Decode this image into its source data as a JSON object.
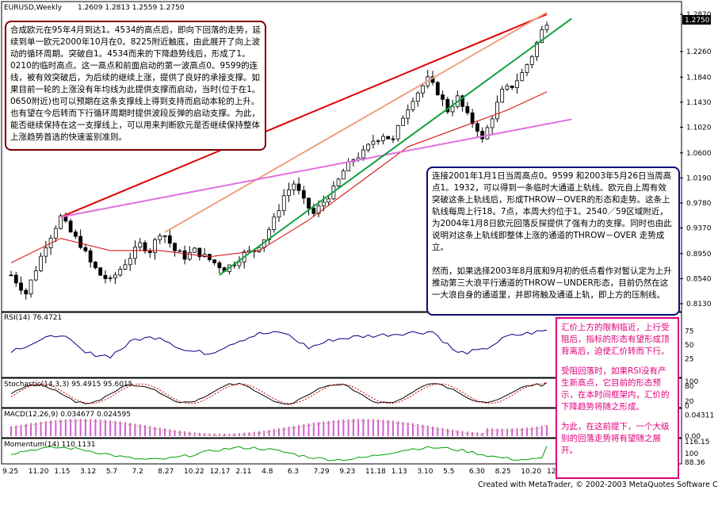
{
  "header": {
    "symbol": "EURUSD,Weekly",
    "ohlc": "1.2609 1.2813 1.2559 1.2750"
  },
  "price_axis": {
    "current": "1.2750",
    "ticks": [
      "1.2870",
      "1.2260",
      "1.1840",
      "1.1430",
      "1.1020",
      "1.0600",
      "1.0190",
      "0.9780",
      "0.9370",
      "0.8950",
      "0.8540",
      "0.8130"
    ]
  },
  "indicators": {
    "rsi": {
      "label": "RSI(14) 76.4721",
      "ticks": [
        "75",
        "50",
        "25"
      ]
    },
    "stochastic": {
      "label": "Stochastic(14,3,3) 95.4915 95.6015",
      "ticks": [
        "100",
        "80",
        "20",
        "0"
      ]
    },
    "macd": {
      "label": "MACD(12,26,9) 0.034677 0.024595",
      "ticks": [
        "0.04311",
        "0.00"
      ]
    },
    "momentum": {
      "label": "Momentum(14) 110.1131",
      "ticks": [
        "116.15",
        "100",
        "88.36"
      ]
    }
  },
  "time_axis": [
    "9.25",
    "11.20",
    "1.15",
    "3.12",
    "5.7",
    "7.2",
    "8.27",
    "10.22",
    "12.17",
    "2.11",
    "4.8",
    "6.3",
    "7.29",
    "9.23",
    "11.18",
    "1.13",
    "3.10",
    "5.5",
    "6.30",
    "8.25",
    "10.20",
    "12.15"
  ],
  "footer": "Created with MetaTrader, © 2002-2003 MetaQuotes Software Corp.",
  "notes": {
    "red": "合成欧元在95年4月到达1。4534的高点后，即向下回落的走势，延续到单一欧元2000年10月在0。8225附近触底，由此展开了向上波动的循环周期。突破自1。4534而来的下降趋势线后，形成了1。0210的临时高点。这一高点和前面启动的第一波高点0。9599的连线，被有效突破后，为后续的继续上涨，提供了良好的承接支撑。如果目前一轮的上涨没有年均线为此提供支撑而启动，当时(位于在1。0650附近)也可以预期在这条支撑线上得到支持而启动本轮的上升。 也有望在今后转而下行循环周期时提供波段反弹的启动支撑。为此，能否继续保持在这一支撑线上，可以用来判断欧元是否继续保持整体上涨趋势首选的快速鉴别准则。",
    "blue_1": "连接2001年1月1日当周高点0。9599 和2003年5月26日当周高点1。1932，可以得到一条临时大通道上轨线。欧元自上周有效突破这条上轨线后，形成THROW－OVER的形态和走势。这条上轨线每周上行18。7点，本周大约位于1。2540／59区域附近，为2004年1月8日欧元回落反探提供了强有力的支撑。同时也由此说明对这条上轨线即整体上涨的通道的THROW－OVER 走势成立。",
    "blue_2": "然而，如果选择2003年8月底和9月初的低点看作对暂认定为上升推动第三大浪平行通道的THROW－UNDER形态，目前仍然在这一大浪自身的通道里，并即将触及通道上轨，即上方的压制线。",
    "pink_1": "汇价上方的限制临近，上行受阻后，指标的形态有望形成顶背离后，迫使汇价转而下行。",
    "pink_2": "受阻回落时，如果RSI没有产生新高点，它目前的形态预示，在本时间框架内，汇价的下降趋势将随之形成。",
    "pink_3": "为此，在这前提下，一个大级别的回落走势将有望随之展开。"
  },
  "colors": {
    "candle": "#000000",
    "resistance_line": "#e00000",
    "upper_channel_line": "#f0a080",
    "support_line": "#e070e0",
    "channel_line": "#10a040",
    "moving_average": "#d00000",
    "rsi_line": "#000080",
    "stoch_main": "#000000",
    "stoch_signal": "#d00000",
    "macd_hist": "#d060d0",
    "macd_signal": "#c0a060",
    "momentum_line": "#00a000",
    "price_box": "#000000"
  },
  "chart_data": {
    "type": "candlestick",
    "title": "EURUSD,Weekly",
    "timeframe": "Weekly",
    "x_tick_labels": [
      "9.25",
      "11.20",
      "1.15",
      "3.12",
      "5.7",
      "7.2",
      "8.27",
      "10.22",
      "12.17",
      "2.11",
      "4.8",
      "6.3",
      "7.29",
      "9.23",
      "11.18",
      "1.13",
      "3.10",
      "5.5",
      "6.30",
      "8.25",
      "10.20",
      "12.15"
    ],
    "ylim": [
      0.813,
      1.287
    ],
    "last_close": 1.275,
    "approx_weekly_close_path": [
      [
        0,
        0.86
      ],
      [
        3,
        0.83
      ],
      [
        5,
        0.87
      ],
      [
        7,
        0.91
      ],
      [
        9,
        0.94
      ],
      [
        10,
        0.955
      ],
      [
        12,
        0.93
      ],
      [
        14,
        0.91
      ],
      [
        16,
        0.88
      ],
      [
        18,
        0.86
      ],
      [
        20,
        0.85
      ],
      [
        22,
        0.87
      ],
      [
        24,
        0.89
      ],
      [
        26,
        0.91
      ],
      [
        28,
        0.9
      ],
      [
        30,
        0.93
      ],
      [
        31,
        0.925
      ],
      [
        33,
        0.9
      ],
      [
        35,
        0.89
      ],
      [
        37,
        0.9
      ],
      [
        39,
        0.89
      ],
      [
        41,
        0.88
      ],
      [
        43,
        0.87
      ],
      [
        45,
        0.88
      ],
      [
        47,
        0.895
      ],
      [
        49,
        0.9
      ],
      [
        51,
        0.92
      ],
      [
        53,
        0.95
      ],
      [
        55,
        0.99
      ],
      [
        57,
        1.01
      ],
      [
        59,
        0.98
      ],
      [
        61,
        0.96
      ],
      [
        63,
        0.98
      ],
      [
        65,
        1.0
      ],
      [
        67,
        1.03
      ],
      [
        69,
        1.05
      ],
      [
        71,
        1.06
      ],
      [
        73,
        1.08
      ],
      [
        75,
        1.09
      ],
      [
        77,
        1.08
      ],
      [
        79,
        1.12
      ],
      [
        81,
        1.15
      ],
      [
        83,
        1.17
      ],
      [
        84,
        1.18
      ],
      [
        86,
        1.16
      ],
      [
        88,
        1.13
      ],
      [
        90,
        1.15
      ],
      [
        92,
        1.12
      ],
      [
        94,
        1.1
      ],
      [
        95,
        1.08
      ],
      [
        97,
        1.12
      ],
      [
        99,
        1.16
      ],
      [
        101,
        1.17
      ],
      [
        103,
        1.19
      ],
      [
        105,
        1.22
      ],
      [
        106,
        1.24
      ],
      [
        107,
        1.26
      ],
      [
        108,
        1.275
      ]
    ],
    "trendlines": [
      {
        "name": "resistance",
        "from": [
          10,
          0.955
        ],
        "to": [
          108,
          1.287
        ]
      },
      {
        "name": "upper_channel",
        "from": [
          31,
          0.93
        ],
        "to": [
          108,
          1.29
        ]
      },
      {
        "name": "support",
        "from": [
          10,
          0.955
        ],
        "to": [
          113,
          1.115
        ]
      },
      {
        "name": "channel",
        "from": [
          42,
          0.86
        ],
        "to": [
          113,
          1.28
        ]
      }
    ],
    "moving_average": [
      [
        0,
        0.88
      ],
      [
        10,
        0.92
      ],
      [
        20,
        0.9
      ],
      [
        30,
        0.9
      ],
      [
        40,
        0.89
      ],
      [
        50,
        0.9
      ],
      [
        60,
        0.95
      ],
      [
        70,
        1.01
      ],
      [
        80,
        1.07
      ],
      [
        90,
        1.1
      ],
      [
        100,
        1.13
      ],
      [
        108,
        1.16
      ]
    ],
    "rsi": {
      "last": 76.4721,
      "range": [
        0,
        100
      ],
      "path": [
        [
          0,
          40
        ],
        [
          5,
          55
        ],
        [
          10,
          70
        ],
        [
          15,
          35
        ],
        [
          20,
          30
        ],
        [
          25,
          60
        ],
        [
          30,
          65
        ],
        [
          35,
          40
        ],
        [
          40,
          35
        ],
        [
          45,
          55
        ],
        [
          50,
          70
        ],
        [
          55,
          72
        ],
        [
          60,
          45
        ],
        [
          65,
          60
        ],
        [
          70,
          65
        ],
        [
          75,
          68
        ],
        [
          80,
          72
        ],
        [
          85,
          74
        ],
        [
          90,
          35
        ],
        [
          95,
          40
        ],
        [
          100,
          65
        ],
        [
          105,
          72
        ],
        [
          108,
          76
        ]
      ]
    },
    "stochastic": {
      "main": 95.4915,
      "signal": 95.6015
    },
    "macd": {
      "main": 0.034677,
      "signal": 0.024595
    },
    "momentum": {
      "last": 110.1131,
      "range": [
        88.36,
        116.15
      ]
    }
  }
}
